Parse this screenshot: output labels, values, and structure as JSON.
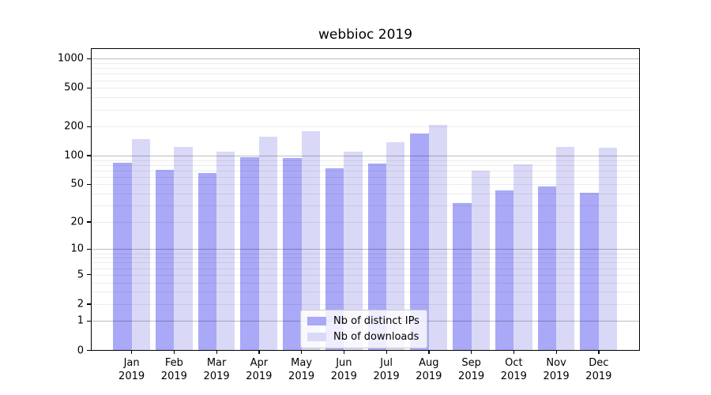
{
  "chart_data": {
    "type": "bar",
    "title": "webbioc 2019",
    "categories": [
      "Jan 2019",
      "Feb 2019",
      "Mar 2019",
      "Apr 2019",
      "May 2019",
      "Jun 2019",
      "Jul 2019",
      "Aug 2019",
      "Sep 2019",
      "Oct 2019",
      "Nov 2019",
      "Dec 2019"
    ],
    "x_tick_months": [
      "Jan",
      "Feb",
      "Mar",
      "Apr",
      "May",
      "Jun",
      "Jul",
      "Aug",
      "Sep",
      "Oct",
      "Nov",
      "Dec"
    ],
    "x_tick_year": "2019",
    "series": [
      {
        "name": "Nb of distinct IPs",
        "color": "#a9a9f7",
        "values": [
          85,
          72,
          67,
          97,
          96,
          75,
          84,
          172,
          32,
          44,
          48,
          41
        ]
      },
      {
        "name": "Nb of downloads",
        "color": "#d9d9f7",
        "values": [
          150,
          125,
          110,
          160,
          180,
          110,
          140,
          210,
          70,
          82,
          125,
          122
        ]
      }
    ],
    "y_ticks": [
      0,
      1,
      2,
      5,
      10,
      20,
      50,
      100,
      200,
      500,
      1000
    ],
    "y_scale": "log10(value+1)",
    "ylim": [
      0,
      1300
    ],
    "grid": "on",
    "legend_position": "lower-center-inside"
  },
  "colors": {
    "bar_distinct_ips": "#a9a9f7",
    "bar_downloads": "#d9d9f7",
    "spine": "#000000"
  }
}
